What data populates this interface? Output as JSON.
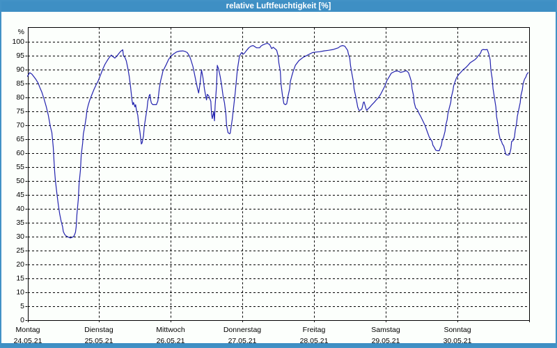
{
  "window": {
    "title": "relative Luftfeuchtigkeit [%]"
  },
  "colors": {
    "titlebar": "#3e8fc4",
    "window_border": "#4292c6",
    "content_background": "#fcfffc",
    "grid": "#000000",
    "line": "#2222ae",
    "label_text": "#000000",
    "title_text": "#ffffff"
  },
  "chart_data": {
    "type": "line",
    "title": "relative Luftfeuchtigkeit [%]",
    "ylabel": "%",
    "ylim": [
      0,
      105
    ],
    "ytick_min": 0,
    "ytick_max": 100,
    "ytick_step": 5,
    "grid": "dashed",
    "legend_position": "none",
    "x_unit": "days from start of week",
    "x_days": [
      {
        "name": "Montag",
        "date": "24.05.21"
      },
      {
        "name": "Dienstag",
        "date": "25.05.21"
      },
      {
        "name": "Mittwoch",
        "date": "26.05.21"
      },
      {
        "name": "Donnerstag",
        "date": "27.05.21"
      },
      {
        "name": "Freitag",
        "date": "28.05.21"
      },
      {
        "name": "Samstag",
        "date": "29.05.21"
      },
      {
        "name": "Sonntag",
        "date": "30.05.21"
      }
    ],
    "series": [
      {
        "name": "relative Luftfeuchtigkeit",
        "unit": "%",
        "points": [
          [
            0.0,
            87.5
          ],
          [
            0.03,
            88.8
          ],
          [
            0.06,
            88.3
          ],
          [
            0.09,
            87.3
          ],
          [
            0.12,
            86.3
          ],
          [
            0.15,
            85.0
          ],
          [
            0.17,
            83.6
          ],
          [
            0.2,
            81.8
          ],
          [
            0.23,
            79.4
          ],
          [
            0.26,
            76.8
          ],
          [
            0.29,
            73.6
          ],
          [
            0.32,
            69.4
          ],
          [
            0.34,
            67.3
          ],
          [
            0.36,
            62.0
          ],
          [
            0.37,
            57.0
          ],
          [
            0.38,
            53.0
          ],
          [
            0.39,
            50.0
          ],
          [
            0.41,
            45.5
          ],
          [
            0.43,
            41.5
          ],
          [
            0.45,
            38.0
          ],
          [
            0.47,
            35.5
          ],
          [
            0.49,
            33.5
          ],
          [
            0.5,
            31.8
          ],
          [
            0.52,
            30.7
          ],
          [
            0.54,
            30.2
          ],
          [
            0.57,
            29.8
          ],
          [
            0.6,
            29.5
          ],
          [
            0.63,
            29.8
          ],
          [
            0.65,
            30.2
          ],
          [
            0.67,
            31.5
          ],
          [
            0.68,
            33.5
          ],
          [
            0.69,
            38.0
          ],
          [
            0.71,
            43.5
          ],
          [
            0.72,
            49.0
          ],
          [
            0.74,
            54.0
          ],
          [
            0.75,
            59.0
          ],
          [
            0.77,
            63.5
          ],
          [
            0.78,
            66.8
          ],
          [
            0.8,
            69.6
          ],
          [
            0.82,
            72.8
          ],
          [
            0.83,
            75.3
          ],
          [
            0.85,
            77.3
          ],
          [
            0.87,
            79.0
          ],
          [
            0.9,
            81.0
          ],
          [
            0.93,
            82.9
          ],
          [
            0.96,
            84.5
          ],
          [
            0.99,
            86.0
          ],
          [
            1.02,
            88.0
          ],
          [
            1.05,
            90.0
          ],
          [
            1.08,
            91.7
          ],
          [
            1.11,
            93.0
          ],
          [
            1.14,
            94.2
          ],
          [
            1.17,
            95.1
          ],
          [
            1.19,
            94.6
          ],
          [
            1.22,
            94.0
          ],
          [
            1.25,
            94.8
          ],
          [
            1.28,
            95.8
          ],
          [
            1.3,
            96.4
          ],
          [
            1.33,
            97.0
          ],
          [
            1.34,
            94.8
          ],
          [
            1.36,
            94.3
          ],
          [
            1.38,
            93.0
          ],
          [
            1.4,
            90.5
          ],
          [
            1.42,
            87.5
          ],
          [
            1.44,
            83.5
          ],
          [
            1.46,
            78.7
          ],
          [
            1.47,
            77.3
          ],
          [
            1.48,
            78.1
          ],
          [
            1.5,
            76.5
          ],
          [
            1.51,
            77.3
          ],
          [
            1.52,
            75.6
          ],
          [
            1.54,
            73.5
          ],
          [
            1.55,
            71.1
          ],
          [
            1.57,
            67.5
          ],
          [
            1.59,
            63.2
          ],
          [
            1.6,
            63.6
          ],
          [
            1.62,
            66.1
          ],
          [
            1.63,
            69.4
          ],
          [
            1.65,
            72.7
          ],
          [
            1.67,
            76.1
          ],
          [
            1.68,
            78.6
          ],
          [
            1.7,
            80.6
          ],
          [
            1.71,
            81.0
          ],
          [
            1.72,
            79.0
          ],
          [
            1.73,
            77.9
          ],
          [
            1.75,
            77.3
          ],
          [
            1.8,
            77.3
          ],
          [
            1.82,
            78.6
          ],
          [
            1.83,
            80.6
          ],
          [
            1.84,
            83.1
          ],
          [
            1.86,
            86.0
          ],
          [
            1.88,
            88.1
          ],
          [
            1.89,
            89.3
          ],
          [
            1.91,
            90.3
          ],
          [
            1.94,
            91.8
          ],
          [
            1.97,
            93.5
          ],
          [
            2.0,
            94.6
          ],
          [
            2.04,
            95.5
          ],
          [
            2.08,
            96.2
          ],
          [
            2.12,
            96.5
          ],
          [
            2.17,
            96.6
          ],
          [
            2.2,
            96.4
          ],
          [
            2.23,
            96.0
          ],
          [
            2.26,
            94.8
          ],
          [
            2.28,
            93.5
          ],
          [
            2.31,
            91.0
          ],
          [
            2.33,
            88.5
          ],
          [
            2.35,
            86.0
          ],
          [
            2.37,
            83.5
          ],
          [
            2.39,
            81.5
          ],
          [
            2.41,
            85.0
          ],
          [
            2.43,
            89.8
          ],
          [
            2.45,
            87.0
          ],
          [
            2.47,
            83.0
          ],
          [
            2.49,
            80.2
          ],
          [
            2.5,
            79.0
          ],
          [
            2.51,
            81.0
          ],
          [
            2.53,
            80.5
          ],
          [
            2.56,
            78.5
          ],
          [
            2.57,
            74.0
          ],
          [
            2.58,
            72.3
          ],
          [
            2.6,
            74.8
          ],
          [
            2.61,
            71.5
          ],
          [
            2.62,
            77.0
          ],
          [
            2.64,
            84.0
          ],
          [
            2.65,
            91.4
          ],
          [
            2.67,
            90.0
          ],
          [
            2.69,
            87.5
          ],
          [
            2.71,
            84.5
          ],
          [
            2.73,
            80.6
          ],
          [
            2.75,
            78.0
          ],
          [
            2.77,
            74.0
          ],
          [
            2.78,
            69.9
          ],
          [
            2.8,
            67.3
          ],
          [
            2.82,
            66.9
          ],
          [
            2.83,
            67.0
          ],
          [
            2.86,
            72.3
          ],
          [
            2.9,
            81.5
          ],
          [
            2.93,
            89.8
          ],
          [
            2.96,
            94.8
          ],
          [
            2.99,
            96.0
          ],
          [
            3.01,
            95.4
          ],
          [
            3.03,
            95.8
          ],
          [
            3.06,
            96.8
          ],
          [
            3.09,
            97.7
          ],
          [
            3.12,
            98.3
          ],
          [
            3.15,
            98.5
          ],
          [
            3.17,
            98.2
          ],
          [
            3.2,
            97.7
          ],
          [
            3.24,
            97.7
          ],
          [
            3.26,
            98.3
          ],
          [
            3.29,
            98.8
          ],
          [
            3.32,
            99.1
          ],
          [
            3.35,
            99.3
          ],
          [
            3.38,
            98.9
          ],
          [
            3.41,
            97.4
          ],
          [
            3.43,
            97.9
          ],
          [
            3.46,
            97.3
          ],
          [
            3.48,
            96.8
          ],
          [
            3.5,
            94.8
          ],
          [
            3.51,
            92.3
          ],
          [
            3.53,
            89.3
          ],
          [
            3.54,
            84.8
          ],
          [
            3.56,
            80.6
          ],
          [
            3.58,
            77.7
          ],
          [
            3.59,
            77.5
          ],
          [
            3.6,
            77.3
          ],
          [
            3.62,
            77.6
          ],
          [
            3.64,
            80.6
          ],
          [
            3.66,
            83.0
          ],
          [
            3.67,
            85.6
          ],
          [
            3.69,
            87.5
          ],
          [
            3.71,
            89.3
          ],
          [
            3.74,
            91.4
          ],
          [
            3.79,
            93.1
          ],
          [
            3.85,
            94.3
          ],
          [
            3.92,
            95.2
          ],
          [
            3.98,
            96.0
          ],
          [
            4.04,
            96.2
          ],
          [
            4.08,
            96.3
          ],
          [
            4.14,
            96.6
          ],
          [
            4.2,
            96.8
          ],
          [
            4.27,
            97.1
          ],
          [
            4.34,
            97.7
          ],
          [
            4.37,
            98.3
          ],
          [
            4.4,
            98.5
          ],
          [
            4.43,
            98.3
          ],
          [
            4.47,
            96.8
          ],
          [
            4.48,
            95.6
          ],
          [
            4.5,
            93.9
          ],
          [
            4.51,
            91.4
          ],
          [
            4.53,
            88.5
          ],
          [
            4.55,
            85.6
          ],
          [
            4.56,
            83.1
          ],
          [
            4.58,
            80.6
          ],
          [
            4.6,
            78.1
          ],
          [
            4.61,
            76.5
          ],
          [
            4.63,
            75.2
          ],
          [
            4.65,
            75.4
          ],
          [
            4.67,
            75.8
          ],
          [
            4.69,
            78.1
          ],
          [
            4.7,
            78.3
          ],
          [
            4.73,
            75.6
          ],
          [
            4.74,
            75.2
          ],
          [
            4.76,
            76.0
          ],
          [
            4.77,
            76.1
          ],
          [
            4.81,
            77.3
          ],
          [
            4.84,
            78.1
          ],
          [
            4.87,
            79.0
          ],
          [
            4.9,
            79.8
          ],
          [
            4.93,
            81.0
          ],
          [
            4.96,
            82.5
          ],
          [
            4.99,
            84.0
          ],
          [
            5.02,
            86.0
          ],
          [
            5.05,
            87.3
          ],
          [
            5.08,
            88.6
          ],
          [
            5.11,
            89.0
          ],
          [
            5.13,
            89.3
          ],
          [
            5.17,
            89.4
          ],
          [
            5.19,
            89.2
          ],
          [
            5.21,
            88.9
          ],
          [
            5.24,
            89.1
          ],
          [
            5.29,
            89.5
          ],
          [
            5.32,
            88.8
          ],
          [
            5.34,
            87.3
          ],
          [
            5.36,
            85.6
          ],
          [
            5.37,
            83.1
          ],
          [
            5.39,
            80.6
          ],
          [
            5.4,
            78.1
          ],
          [
            5.42,
            76.1
          ],
          [
            5.44,
            75.6
          ],
          [
            5.45,
            75.2
          ],
          [
            5.47,
            74.0
          ],
          [
            5.49,
            73.1
          ],
          [
            5.52,
            71.5
          ],
          [
            5.55,
            69.9
          ],
          [
            5.58,
            67.8
          ],
          [
            5.61,
            65.7
          ],
          [
            5.65,
            64.1
          ],
          [
            5.66,
            62.8
          ],
          [
            5.68,
            62.0
          ],
          [
            5.7,
            61.0
          ],
          [
            5.72,
            60.8
          ],
          [
            5.75,
            60.8
          ],
          [
            5.78,
            62.8
          ],
          [
            5.79,
            64.4
          ],
          [
            5.81,
            65.7
          ],
          [
            5.83,
            67.8
          ],
          [
            5.84,
            69.9
          ],
          [
            5.86,
            71.9
          ],
          [
            5.87,
            74.0
          ],
          [
            5.89,
            76.1
          ],
          [
            5.91,
            78.1
          ],
          [
            5.92,
            80.2
          ],
          [
            5.94,
            82.3
          ],
          [
            5.95,
            84.0
          ],
          [
            5.97,
            85.6
          ],
          [
            5.99,
            86.9
          ],
          [
            6.02,
            88.1
          ],
          [
            6.05,
            88.9
          ],
          [
            6.08,
            89.8
          ],
          [
            6.12,
            90.6
          ],
          [
            6.15,
            91.4
          ],
          [
            6.18,
            92.3
          ],
          [
            6.21,
            92.8
          ],
          [
            6.25,
            93.5
          ],
          [
            6.28,
            94.3
          ],
          [
            6.29,
            94.8
          ],
          [
            6.31,
            95.2
          ],
          [
            6.33,
            96.0
          ],
          [
            6.34,
            96.8
          ],
          [
            6.36,
            97.1
          ],
          [
            6.39,
            97.0
          ],
          [
            6.42,
            97.1
          ],
          [
            6.44,
            95.6
          ],
          [
            6.46,
            93.4
          ],
          [
            6.47,
            89.8
          ],
          [
            6.49,
            86.5
          ],
          [
            6.5,
            83.1
          ],
          [
            6.52,
            79.8
          ],
          [
            6.54,
            76.5
          ],
          [
            6.55,
            73.1
          ],
          [
            6.57,
            69.9
          ],
          [
            6.58,
            67.3
          ],
          [
            6.6,
            64.9
          ],
          [
            6.62,
            64.1
          ],
          [
            6.63,
            63.3
          ],
          [
            6.65,
            62.5
          ],
          [
            6.67,
            60.3
          ],
          [
            6.68,
            59.4
          ],
          [
            6.71,
            59.2
          ],
          [
            6.73,
            59.4
          ],
          [
            6.75,
            61.5
          ],
          [
            6.76,
            64.1
          ],
          [
            6.78,
            64.4
          ],
          [
            6.8,
            65.7
          ],
          [
            6.81,
            68.1
          ],
          [
            6.83,
            70.7
          ],
          [
            6.84,
            73.1
          ],
          [
            6.86,
            75.6
          ],
          [
            6.88,
            78.1
          ],
          [
            6.89,
            80.6
          ],
          [
            6.91,
            82.7
          ],
          [
            6.92,
            84.8
          ],
          [
            6.94,
            86.4
          ],
          [
            6.96,
            87.3
          ],
          [
            6.97,
            88.1
          ],
          [
            6.99,
            88.8
          ]
        ]
      }
    ]
  }
}
